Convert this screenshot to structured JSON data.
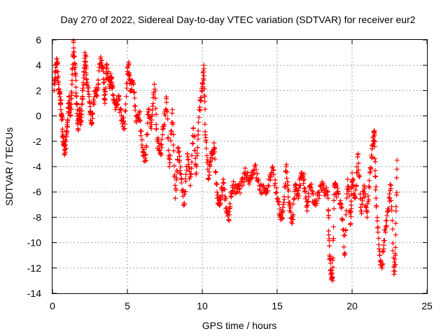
{
  "chart_data": {
    "type": "scatter",
    "title": "Day 270 of 2022, Sidereal Day-to-day VTEC variation (SDTVAR) for receiver eur2",
    "xlabel": "GPS time / hours",
    "ylabel": "SDTVAR / TECUs",
    "xlim": [
      0,
      25
    ],
    "ylim": [
      -14,
      6
    ],
    "xticks": [
      0,
      5,
      10,
      15,
      20,
      25
    ],
    "yticks": [
      -14,
      -12,
      -10,
      -8,
      -6,
      -4,
      -2,
      0,
      2,
      4,
      6
    ],
    "grid": true,
    "marker": "plus",
    "color": "#ff0000",
    "series": [
      {
        "name": "SDTVAR",
        "trace": [
          [
            0.1,
            2.0
          ],
          [
            0.2,
            3.5
          ],
          [
            0.3,
            4.5
          ],
          [
            0.4,
            2.5
          ],
          [
            0.5,
            1.5
          ],
          [
            0.6,
            0.2
          ],
          [
            0.7,
            -1.5
          ],
          [
            0.8,
            -3.0
          ],
          [
            0.9,
            -2.0
          ],
          [
            1.0,
            -0.5
          ],
          [
            1.1,
            1.5
          ],
          [
            1.2,
            0.0
          ],
          [
            1.3,
            2.5
          ],
          [
            1.4,
            5.8
          ],
          [
            1.5,
            4.0
          ],
          [
            1.6,
            1.0
          ],
          [
            1.7,
            -1.0
          ],
          [
            1.8,
            0.5
          ],
          [
            1.9,
            -0.5
          ],
          [
            2.0,
            1.5
          ],
          [
            2.1,
            3.5
          ],
          [
            2.2,
            4.8
          ],
          [
            2.3,
            2.5
          ],
          [
            2.5,
            1.0
          ],
          [
            2.6,
            -0.5
          ],
          [
            2.8,
            1.5
          ],
          [
            3.0,
            2.0
          ],
          [
            3.2,
            4.5
          ],
          [
            3.4,
            3.5
          ],
          [
            3.5,
            1.0
          ],
          [
            3.6,
            4.0
          ],
          [
            3.8,
            2.5
          ],
          [
            3.9,
            3.0
          ],
          [
            4.0,
            2.2
          ],
          [
            4.2,
            0.5
          ],
          [
            4.4,
            1.5
          ],
          [
            4.6,
            0.0
          ],
          [
            4.8,
            -1.0
          ],
          [
            5.0,
            3.5
          ],
          [
            5.1,
            4.0
          ],
          [
            5.2,
            2.0
          ],
          [
            5.4,
            2.5
          ],
          [
            5.6,
            -0.5
          ],
          [
            5.8,
            0.3
          ],
          [
            6.0,
            -2.5
          ],
          [
            6.2,
            -3.5
          ],
          [
            6.4,
            0.5
          ],
          [
            6.6,
            -1.0
          ],
          [
            6.8,
            2.5
          ],
          [
            7.0,
            -2.0
          ],
          [
            7.2,
            -3.0
          ],
          [
            7.4,
            -1.0
          ],
          [
            7.6,
            1.5
          ],
          [
            7.8,
            -4.0
          ],
          [
            8.0,
            0.5
          ],
          [
            8.2,
            -6.5
          ],
          [
            8.4,
            -2.5
          ],
          [
            8.6,
            -5.0
          ],
          [
            8.8,
            -7.0
          ],
          [
            9.0,
            -3.0
          ],
          [
            9.2,
            -5.5
          ],
          [
            9.4,
            -1.0
          ],
          [
            9.6,
            -4.5
          ],
          [
            9.8,
            0.5
          ],
          [
            10.0,
            2.0
          ],
          [
            10.1,
            4.0
          ],
          [
            10.2,
            -1.5
          ],
          [
            10.4,
            -5.0
          ],
          [
            10.6,
            -3.0
          ],
          [
            10.8,
            -2.5
          ],
          [
            11.0,
            -6.5
          ],
          [
            11.2,
            -7.0
          ],
          [
            11.4,
            -5.0
          ],
          [
            11.6,
            -7.5
          ],
          [
            11.8,
            -7.8
          ],
          [
            12.0,
            -5.5
          ],
          [
            12.3,
            -6.0
          ],
          [
            12.6,
            -5.5
          ],
          [
            12.9,
            -4.5
          ],
          [
            13.2,
            -5.0
          ],
          [
            13.5,
            -4.0
          ],
          [
            13.8,
            -5.5
          ],
          [
            14.1,
            -6.0
          ],
          [
            14.4,
            -5.5
          ],
          [
            14.7,
            -4.0
          ],
          [
            15.0,
            -6.5
          ],
          [
            15.2,
            -8.0
          ],
          [
            15.4,
            -7.5
          ],
          [
            15.6,
            -4.0
          ],
          [
            15.8,
            -7.0
          ],
          [
            16.0,
            -8.5
          ],
          [
            16.2,
            -5.5
          ],
          [
            16.4,
            -6.5
          ],
          [
            16.6,
            -4.5
          ],
          [
            16.8,
            -5.0
          ],
          [
            17.0,
            -7.5
          ],
          [
            17.2,
            -5.5
          ],
          [
            17.5,
            -7.0
          ],
          [
            17.8,
            -6.0
          ],
          [
            18.1,
            -5.5
          ],
          [
            18.4,
            -6.5
          ],
          [
            18.5,
            -11.0
          ],
          [
            18.6,
            -12.5
          ],
          [
            18.7,
            -13.0
          ],
          [
            18.8,
            -5.5
          ],
          [
            19.0,
            -6.0
          ],
          [
            19.3,
            -7.0
          ],
          [
            19.5,
            -11.0
          ],
          [
            19.7,
            -5.0
          ],
          [
            19.9,
            -8.5
          ],
          [
            20.0,
            -4.5
          ],
          [
            20.2,
            -6.5
          ],
          [
            20.4,
            -3.0
          ],
          [
            20.6,
            -7.5
          ],
          [
            20.8,
            -5.5
          ],
          [
            21.0,
            -8.0
          ],
          [
            21.2,
            -4.5
          ],
          [
            21.4,
            -2.0
          ],
          [
            21.5,
            -1.5
          ],
          [
            21.6,
            -6.5
          ],
          [
            21.8,
            -10.5
          ],
          [
            22.0,
            -12.0
          ],
          [
            22.2,
            -9.0
          ],
          [
            22.4,
            -7.5
          ],
          [
            22.6,
            -5.5
          ],
          [
            22.8,
            -12.5
          ],
          [
            22.9,
            -11.0
          ],
          [
            23.0,
            -3.5
          ]
        ]
      }
    ]
  }
}
